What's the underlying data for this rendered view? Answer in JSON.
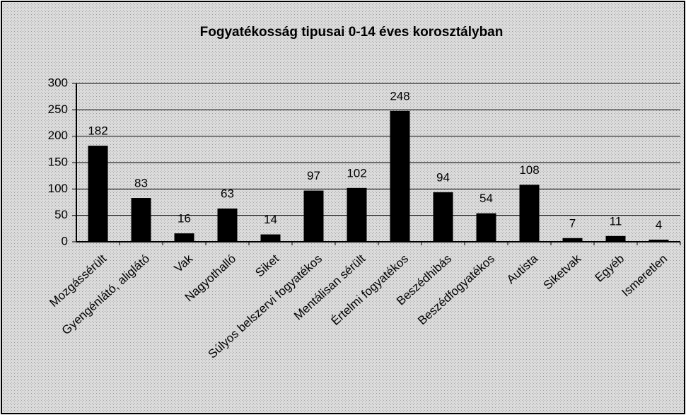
{
  "chart_data": {
    "type": "bar",
    "title": "Fogyatékosság tipusai 0-14 éves korosztályban",
    "categories": [
      "Mozgássérült",
      "Gyengénlátó, aliglátó",
      "Vak",
      "Nagyothalló",
      "Siket",
      "Súlyos belszervi fogyatékos",
      "Mentálisan sérült",
      "Értelmi fogyatékos",
      "Beszédhibás",
      "Beszédfogyatékos",
      "Autista",
      "Siketvak",
      "Egyéb",
      "Ismeretlen"
    ],
    "values": [
      182,
      83,
      16,
      63,
      14,
      97,
      102,
      248,
      94,
      54,
      108,
      7,
      11,
      4
    ],
    "color": "#000000",
    "ylim": [
      0,
      300
    ],
    "yticks": [
      0,
      50,
      100,
      150,
      200,
      250,
      300
    ],
    "grid": true
  }
}
